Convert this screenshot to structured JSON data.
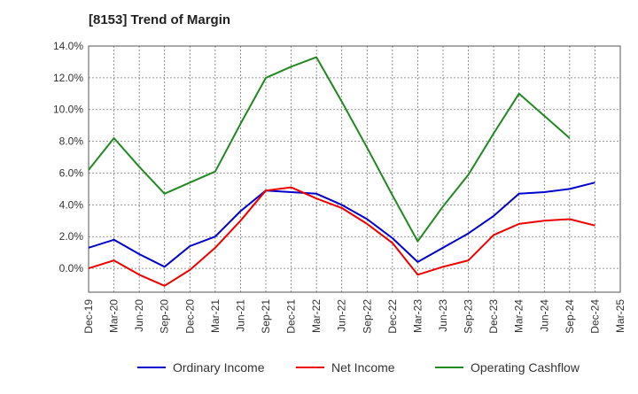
{
  "chart_data": {
    "type": "line",
    "title": "[8153]  Trend of Margin",
    "x": [
      "Dec-19",
      "Mar-20",
      "Jun-20",
      "Sep-20",
      "Dec-20",
      "Mar-21",
      "Jun-21",
      "Sep-21",
      "Dec-21",
      "Mar-22",
      "Jun-22",
      "Sep-22",
      "Dec-22",
      "Mar-23",
      "Jun-23",
      "Sep-23",
      "Dec-23",
      "Mar-24",
      "Jun-24",
      "Sep-24",
      "Dec-24",
      "Mar-25"
    ],
    "ylim": [
      -1.5,
      14.0
    ],
    "yticks": [
      0.0,
      2.0,
      4.0,
      6.0,
      8.0,
      10.0,
      12.0,
      14.0
    ],
    "ytick_labels": [
      "0.0%",
      "2.0%",
      "4.0%",
      "6.0%",
      "8.0%",
      "10.0%",
      "12.0%",
      "14.0%"
    ],
    "grid": true,
    "legend_position": "bottom",
    "series": [
      {
        "name": "Ordinary Income",
        "color": "#0000cc",
        "values": [
          1.3,
          1.8,
          0.9,
          0.1,
          1.4,
          2.0,
          3.6,
          4.9,
          4.8,
          4.7,
          4.0,
          3.1,
          1.9,
          0.4,
          1.3,
          2.2,
          3.3,
          4.7,
          4.8,
          5.0,
          5.4,
          null
        ]
      },
      {
        "name": "Net Income",
        "color": "#ee0000",
        "values": [
          0.0,
          0.5,
          -0.4,
          -1.1,
          -0.1,
          1.3,
          3.0,
          4.9,
          5.1,
          4.4,
          3.8,
          2.8,
          1.6,
          -0.4,
          0.1,
          0.5,
          2.1,
          2.8,
          3.0,
          3.1,
          2.7,
          null
        ]
      },
      {
        "name": "Operating Cashflow",
        "color": "#228822",
        "values": [
          6.2,
          8.2,
          6.4,
          4.7,
          5.4,
          6.1,
          9.1,
          12.0,
          12.7,
          13.3,
          10.5,
          7.6,
          4.6,
          1.7,
          3.9,
          5.9,
          8.5,
          11.0,
          9.6,
          8.2,
          null,
          null
        ]
      }
    ]
  }
}
